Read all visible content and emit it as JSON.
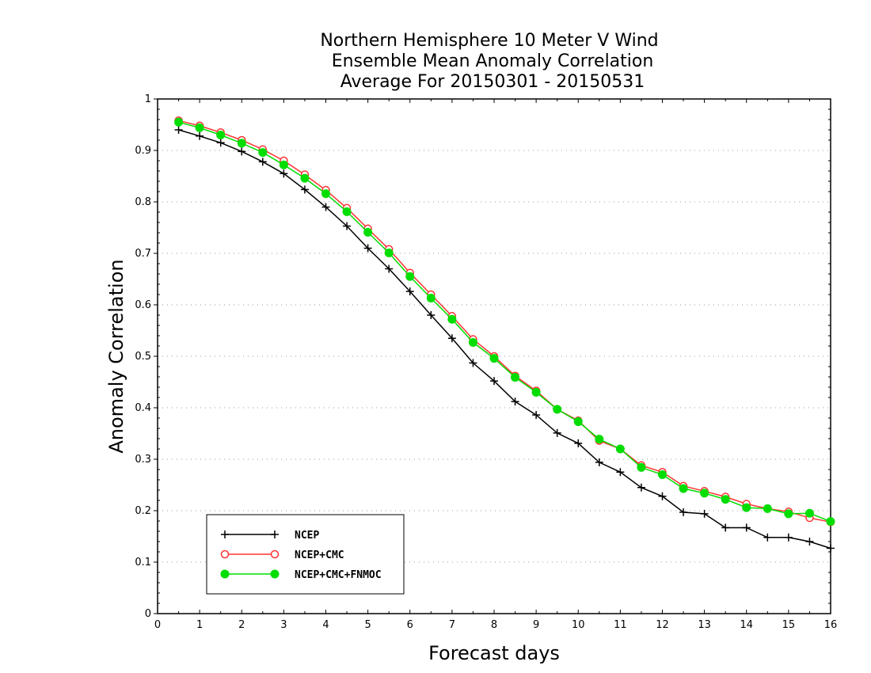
{
  "chart_data": {
    "type": "line",
    "title": [
      "Northern Hemisphere 10 Meter V Wind",
      "Ensemble Mean Anomaly Correlation",
      "Average For 20150301 - 20150531"
    ],
    "xlabel": "Forecast days",
    "ylabel": "Anomaly Correlation",
    "xlim": [
      0,
      16
    ],
    "ylim": [
      0,
      1
    ],
    "x_ticks": [
      0,
      1,
      2,
      3,
      4,
      5,
      6,
      7,
      8,
      9,
      10,
      11,
      12,
      13,
      14,
      15,
      16
    ],
    "y_ticks": [
      0,
      0.1,
      0.2,
      0.3,
      0.4,
      0.5,
      0.6,
      0.7,
      0.8,
      0.9,
      1
    ],
    "y_tick_labels": [
      "0",
      "0.1",
      "0.2",
      "0.3",
      "0.4",
      "0.5",
      "0.6",
      "0.7",
      "0.8",
      "0.9",
      "1"
    ],
    "grid": "horizontal dotted",
    "legend_position": "bottom-left",
    "x": [
      0.5,
      1,
      1.5,
      2,
      2.5,
      3,
      3.5,
      4,
      4.5,
      5,
      5.5,
      6,
      6.5,
      7,
      7.5,
      8,
      8.5,
      9,
      9.5,
      10,
      10.5,
      11,
      11.5,
      12,
      12.5,
      13,
      13.5,
      14,
      14.5,
      15,
      15.5,
      16
    ],
    "series": [
      {
        "name": "NCEP",
        "color": "#000000",
        "marker": "plus",
        "values": [
          0.94,
          0.928,
          0.915,
          0.898,
          0.878,
          0.855,
          0.824,
          0.79,
          0.753,
          0.71,
          0.67,
          0.626,
          0.58,
          0.535,
          0.487,
          0.452,
          0.412,
          0.386,
          0.351,
          0.331,
          0.294,
          0.275,
          0.245,
          0.228,
          0.197,
          0.194,
          0.167,
          0.167,
          0.148,
          0.148,
          0.14,
          0.127
        ]
      },
      {
        "name": "NCEP+CMC",
        "color": "#ff3333",
        "marker": "open-circle",
        "values": [
          0.958,
          0.948,
          0.935,
          0.92,
          0.902,
          0.88,
          0.853,
          0.823,
          0.788,
          0.748,
          0.708,
          0.662,
          0.62,
          0.578,
          0.533,
          0.5,
          0.462,
          0.433,
          0.397,
          0.375,
          0.336,
          0.32,
          0.288,
          0.275,
          0.248,
          0.238,
          0.227,
          0.213,
          0.204,
          0.198,
          0.186,
          0.178
        ]
      },
      {
        "name": "NCEP+CMC+FNMOC",
        "color": "#00dd00",
        "marker": "filled-circle",
        "values": [
          0.955,
          0.944,
          0.93,
          0.914,
          0.896,
          0.872,
          0.846,
          0.816,
          0.781,
          0.741,
          0.701,
          0.655,
          0.613,
          0.572,
          0.527,
          0.496,
          0.459,
          0.43,
          0.397,
          0.373,
          0.339,
          0.32,
          0.284,
          0.27,
          0.243,
          0.234,
          0.222,
          0.206,
          0.204,
          0.194,
          0.195,
          0.179
        ]
      }
    ]
  }
}
